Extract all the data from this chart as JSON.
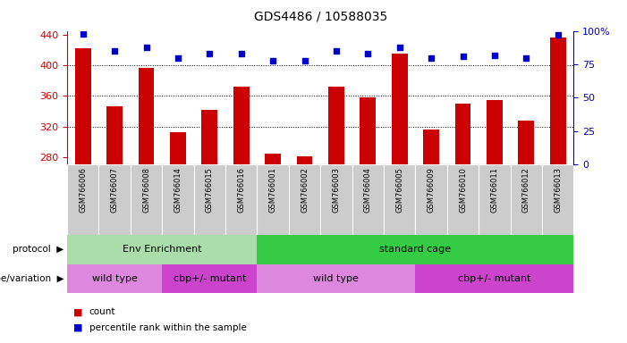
{
  "title": "GDS4486 / 10588035",
  "samples": [
    "GSM766006",
    "GSM766007",
    "GSM766008",
    "GSM766014",
    "GSM766015",
    "GSM766016",
    "GSM766001",
    "GSM766002",
    "GSM766003",
    "GSM766004",
    "GSM766005",
    "GSM766009",
    "GSM766010",
    "GSM766011",
    "GSM766012",
    "GSM766013"
  ],
  "counts": [
    422,
    346,
    396,
    313,
    342,
    372,
    284,
    281,
    372,
    358,
    415,
    316,
    350,
    355,
    328,
    436
  ],
  "percentiles": [
    98,
    85,
    88,
    80,
    83,
    83,
    78,
    78,
    85,
    83,
    88,
    80,
    81,
    82,
    80,
    97
  ],
  "ylim_left": [
    270,
    445
  ],
  "ylim_right": [
    0,
    100
  ],
  "yticks_left": [
    280,
    320,
    360,
    400,
    440
  ],
  "yticks_right": [
    0,
    25,
    50,
    75,
    100
  ],
  "bar_color": "#cc0000",
  "dot_color": "#0000cc",
  "grid_lines": [
    320,
    360,
    400
  ],
  "protocol_groups": [
    {
      "label": "Env Enrichment",
      "start": 0,
      "end": 6,
      "color": "#aaddaa"
    },
    {
      "label": "standard cage",
      "start": 6,
      "end": 16,
      "color": "#33cc44"
    }
  ],
  "genotype_groups": [
    {
      "label": "wild type",
      "start": 0,
      "end": 3,
      "color": "#dd88dd"
    },
    {
      "label": "cbp+/- mutant",
      "start": 3,
      "end": 6,
      "color": "#cc44cc"
    },
    {
      "label": "wild type",
      "start": 6,
      "end": 11,
      "color": "#dd88dd"
    },
    {
      "label": "cbp+/- mutant",
      "start": 11,
      "end": 16,
      "color": "#cc44cc"
    }
  ],
  "legend_count_label": "count",
  "legend_pct_label": "percentile rank within the sample",
  "protocol_label": "protocol",
  "genotype_label": "genotype/variation",
  "xlabel_bg_color": "#cccccc",
  "bar_width": 0.5
}
